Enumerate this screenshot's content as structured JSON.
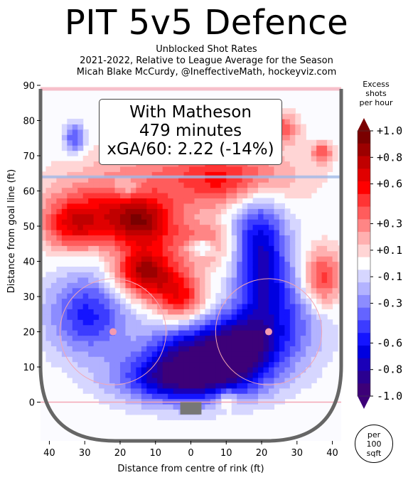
{
  "title": "PIT 5v5 Defence",
  "subtitle_lines": [
    "Unblocked Shot Rates",
    "2021-2022, Relative to League Average for the Season",
    "Micah Blake McCurdy, @IneffectiveMath, hockeyviz.com"
  ],
  "info_box": {
    "line1": "With Matheson",
    "line2": "479 minutes",
    "line3": "xGA/60: 2.22 (-14%)"
  },
  "colorbar": {
    "title_lines": [
      "Excess",
      "shots",
      "per hour"
    ],
    "tick_labels": [
      "+1.0",
      "+0.8",
      "+0.6",
      "+0.3",
      "+0.1",
      "-0.1",
      "-0.3",
      "-0.6",
      "-0.8",
      "-1.0"
    ],
    "tick_values": [
      1.0,
      0.8,
      0.6,
      0.3,
      0.1,
      -0.1,
      -0.3,
      -0.6,
      -0.8,
      -1.0
    ],
    "colors_top_to_bottom": [
      "#7a0000",
      "#9c0000",
      "#c00000",
      "#e00000",
      "#ff0000",
      "#ff3434",
      "#ff5c5c",
      "#ff8585",
      "#ffb0b0",
      "#ffd5d5",
      "#ffffff",
      "#d6d6ff",
      "#b3b3ff",
      "#8c8cff",
      "#6464ff",
      "#3c3cff",
      "#1414ff",
      "#0000e0",
      "#1a00b8",
      "#2a0090",
      "#3d0078"
    ]
  },
  "per_unit_lines": [
    "per",
    "100",
    "sqft"
  ],
  "chart_data": {
    "type": "heatmap",
    "title": "PIT 5v5 Defence",
    "subtitle": "Unblocked Shot Rates",
    "xlabel": "Distance from centre of rink (ft)",
    "ylabel": "Distance from goal line (ft)",
    "xlim": [
      -42.5,
      42.5
    ],
    "ylim": [
      -11,
      90
    ],
    "x_ticks": [
      -40,
      -30,
      -20,
      -10,
      0,
      10,
      20,
      30,
      40
    ],
    "x_tick_labels": [
      "40",
      "30",
      "20",
      "10",
      "0",
      "10",
      "20",
      "30",
      "40"
    ],
    "y_ticks": [
      0,
      10,
      20,
      30,
      40,
      50,
      60,
      70,
      80,
      90
    ],
    "y_tick_labels": [
      "0",
      "10",
      "20",
      "30",
      "40",
      "50",
      "60",
      "70",
      "80",
      "90"
    ],
    "zlim": [
      -1.0,
      1.0
    ],
    "blobs": [
      {
        "x": -33,
        "y": 50,
        "sx": 6,
        "sy": 5,
        "value": 0.5
      },
      {
        "x": -25,
        "y": 55,
        "sx": 12,
        "sy": 6,
        "value": 0.35
      },
      {
        "x": -14,
        "y": 51,
        "sx": 7,
        "sy": 5,
        "value": 0.7
      },
      {
        "x": -13,
        "y": 37,
        "sx": 6,
        "sy": 5,
        "value": 0.85
      },
      {
        "x": -3,
        "y": 30,
        "sx": 5,
        "sy": 5,
        "value": 0.55
      },
      {
        "x": 4,
        "y": 45,
        "sx": 6,
        "sy": 4,
        "value": 0.45
      },
      {
        "x": 0,
        "y": 65,
        "sx": 20,
        "sy": 6,
        "value": 0.3
      },
      {
        "x": 12,
        "y": 62,
        "sx": 10,
        "sy": 6,
        "value": 0.35
      },
      {
        "x": 37,
        "y": 35,
        "sx": 4,
        "sy": 6,
        "value": 0.55
      },
      {
        "x": 26,
        "y": 78,
        "sx": 3,
        "sy": 3,
        "value": 0.4
      },
      {
        "x": 37,
        "y": 71,
        "sx": 2,
        "sy": 2,
        "value": 0.4
      },
      {
        "x": 10,
        "y": 1,
        "sx": 2,
        "sy": 2,
        "value": 0.3
      },
      {
        "x": -29,
        "y": 25,
        "sx": 8,
        "sy": 8,
        "value": -0.55
      },
      {
        "x": -33,
        "y": 75,
        "sx": 2,
        "sy": 3,
        "value": -0.45
      },
      {
        "x": -18,
        "y": 61,
        "sx": 3,
        "sy": 2,
        "value": -0.25
      },
      {
        "x": 3,
        "y": 44,
        "sx": 3,
        "sy": 2,
        "value": -0.5
      },
      {
        "x": 20,
        "y": 38,
        "sx": 5,
        "sy": 10,
        "value": -0.6
      },
      {
        "x": 14,
        "y": 16,
        "sx": 8,
        "sy": 7,
        "value": -0.9
      },
      {
        "x": -2,
        "y": 7,
        "sx": 12,
        "sy": 5,
        "value": -0.95
      },
      {
        "x": -2,
        "y": 16,
        "sx": 8,
        "sy": 5,
        "value": -0.5
      },
      {
        "x": 28,
        "y": 25,
        "sx": 8,
        "sy": 10,
        "value": -0.35
      },
      {
        "x": 18,
        "y": 52,
        "sx": 6,
        "sy": 8,
        "value": -0.35
      }
    ]
  }
}
